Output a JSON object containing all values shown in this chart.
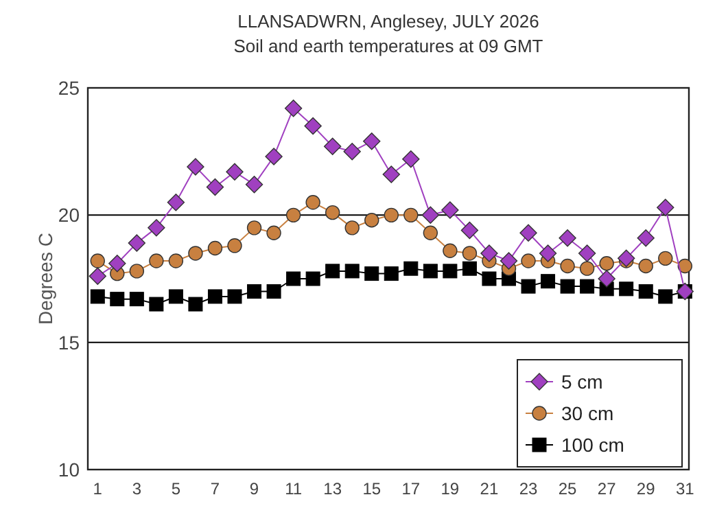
{
  "chart_data": {
    "type": "line",
    "title": "LLANSADWRN, Anglesey, JULY 2026",
    "subtitle": "Soil and earth temperatures at 09 GMT",
    "ylabel": "Degrees C",
    "x": [
      1,
      2,
      3,
      4,
      5,
      6,
      7,
      8,
      9,
      10,
      11,
      12,
      13,
      14,
      15,
      16,
      17,
      18,
      19,
      20,
      21,
      22,
      23,
      24,
      25,
      26,
      27,
      28,
      29,
      30,
      31
    ],
    "xlim": [
      0.5,
      31.2
    ],
    "xticks": [
      1,
      3,
      5,
      7,
      9,
      11,
      13,
      15,
      17,
      19,
      21,
      23,
      25,
      27,
      29,
      31
    ],
    "ylim": [
      10,
      25
    ],
    "yticks": [
      10,
      15,
      20,
      25
    ],
    "grid": "y",
    "legend": "bottom right",
    "series": [
      {
        "name": "5 cm",
        "color": "#a040c0",
        "marker": "diamond",
        "values": [
          17.6,
          18.1,
          18.9,
          19.5,
          20.5,
          21.9,
          21.1,
          21.7,
          21.2,
          22.3,
          24.2,
          23.5,
          22.7,
          22.5,
          22.9,
          21.6,
          22.2,
          20.0,
          20.2,
          19.4,
          18.5,
          18.2,
          19.3,
          18.5,
          19.1,
          18.5,
          17.5,
          18.3,
          19.1,
          20.3,
          17.0
        ]
      },
      {
        "name": "30 cm",
        "color": "#c88040",
        "marker": "circle",
        "values": [
          18.2,
          17.7,
          17.8,
          18.2,
          18.2,
          18.5,
          18.7,
          18.8,
          19.5,
          19.3,
          20.0,
          20.5,
          20.1,
          19.5,
          19.8,
          20.0,
          20.0,
          19.3,
          18.6,
          18.5,
          18.2,
          17.9,
          18.2,
          18.2,
          18.0,
          17.9,
          18.1,
          18.2,
          18.0,
          18.3,
          18.0
        ]
      },
      {
        "name": "100 cm",
        "color": "#000000",
        "marker": "square",
        "values": [
          16.8,
          16.7,
          16.7,
          16.5,
          16.8,
          16.5,
          16.8,
          16.8,
          17.0,
          17.0,
          17.5,
          17.5,
          17.8,
          17.8,
          17.7,
          17.7,
          17.9,
          17.8,
          17.8,
          17.9,
          17.5,
          17.5,
          17.2,
          17.4,
          17.2,
          17.2,
          17.1,
          17.1,
          17.0,
          16.8,
          17.0
        ]
      }
    ]
  }
}
